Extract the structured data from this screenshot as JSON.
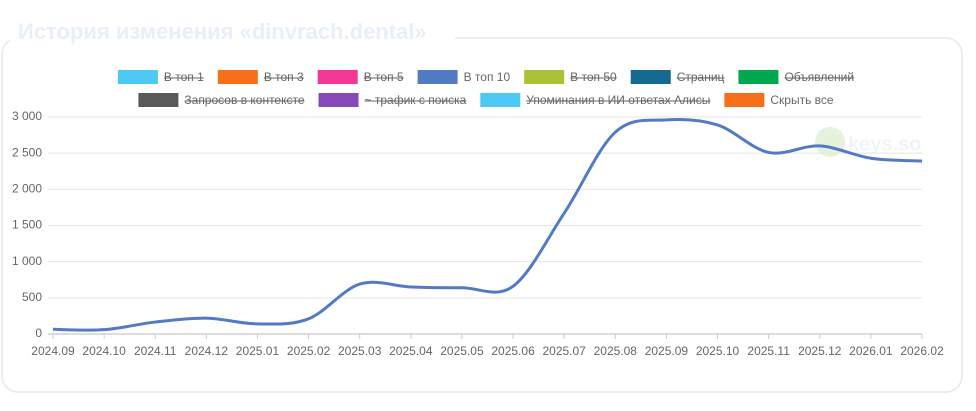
{
  "chart_data": {
    "type": "line",
    "title": "История изменения «dinvrach.dental»",
    "watermark": "keys.so",
    "categories": [
      "2024.09",
      "2024.10",
      "2024.11",
      "2024.12",
      "2025.01",
      "2025.02",
      "2025.03",
      "2025.04",
      "2025.05",
      "2025.06",
      "2025.07",
      "2025.08",
      "2025.09",
      "2025.10",
      "2025.11",
      "2025.12",
      "2026.01",
      "2026.02"
    ],
    "series": [
      {
        "name": "В топ 1",
        "color": "#4dc9f6",
        "hidden": true
      },
      {
        "name": "В топ 3",
        "color": "#f67019",
        "hidden": true
      },
      {
        "name": "В топ 5",
        "color": "#f53794",
        "hidden": true
      },
      {
        "name": "В топ 10",
        "color": "#537bc4",
        "values": [
          65,
          60,
          165,
          220,
          140,
          210,
          690,
          650,
          640,
          660,
          1670,
          2790,
          2960,
          2890,
          2510,
          2600,
          2430,
          2390
        ]
      },
      {
        "name": "В топ 50",
        "color": "#acc236",
        "hidden": true
      },
      {
        "name": "Страниц",
        "color": "#166a8f",
        "hidden": true
      },
      {
        "name": "Объявлений",
        "color": "#00a950",
        "hidden": true
      },
      {
        "name": "Запросов в контексте",
        "color": "#58595b",
        "hidden": true
      },
      {
        "name": "~ трафик с поиска",
        "color": "#8549ba",
        "hidden": true
      },
      {
        "name": "Упоминания в ИИ ответах Алисы",
        "color": "#4dc9f6",
        "hidden": true
      }
    ],
    "hide_all_button": {
      "label": "Скрыть все",
      "color": "#f67019"
    },
    "ylim": [
      0,
      3000
    ],
    "yticks": [
      0,
      500,
      {
        "value": 1000,
        "label": "1 000"
      },
      {
        "value": 1500,
        "label": "1 500"
      },
      {
        "value": 2000,
        "label": "2 000"
      },
      {
        "value": 2500,
        "label": "2 500"
      },
      {
        "value": 3000,
        "label": "3 000"
      }
    ],
    "grid": true
  }
}
